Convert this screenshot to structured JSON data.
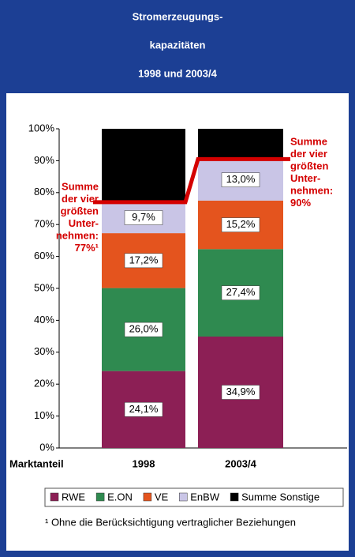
{
  "chart_data": {
    "type": "stacked_bar",
    "title_lines": [
      "Stromerzeugungs-",
      "kapazitäten",
      "1998 und 2003/4"
    ],
    "x_label": "Marktanteil",
    "categories": [
      "1998",
      "2003/4"
    ],
    "series": [
      {
        "name": "RWE",
        "color": "#8c1f55",
        "values": [
          24.1,
          34.9
        ],
        "value_labels": [
          "24,1%",
          "34,9%"
        ]
      },
      {
        "name": "E.ON",
        "color": "#2f8a50",
        "values": [
          26.0,
          27.4
        ],
        "value_labels": [
          "26,0%",
          "27,4%"
        ]
      },
      {
        "name": "VE",
        "color": "#e4541e",
        "values": [
          17.2,
          15.2
        ],
        "value_labels": [
          "17,2%",
          "15,2%"
        ]
      },
      {
        "name": "EnBW",
        "color": "#c9c5e6",
        "values": [
          9.7,
          13.0
        ],
        "value_labels": [
          "9,7%",
          "13,0%"
        ]
      },
      {
        "name": "Summe Sonstige",
        "color": "#000000",
        "values": [
          23.0,
          9.5
        ]
      }
    ],
    "ylim": [
      0,
      100
    ],
    "yticks": [
      {
        "value": 0,
        "label": "0%"
      },
      {
        "value": 10,
        "label": "10%"
      },
      {
        "value": 20,
        "label": "20%"
      },
      {
        "value": 30,
        "label": "30%"
      },
      {
        "value": 40,
        "label": "40%"
      },
      {
        "value": 50,
        "label": "50%"
      },
      {
        "value": 60,
        "label": "60%"
      },
      {
        "value": 70,
        "label": "70%"
      },
      {
        "value": 80,
        "label": "80%"
      },
      {
        "value": 90,
        "label": "90%"
      },
      {
        "value": 100,
        "label": "100%"
      }
    ],
    "sum_line_color": "#d40000",
    "annotations": [
      {
        "lines": [
          "Summe",
          "der vier",
          "größten",
          "Unter-",
          "nehmen:",
          "77%¹"
        ]
      },
      {
        "lines": [
          "Summe",
          "der vier",
          "größten",
          "Unter-",
          "nehmen:",
          "90%"
        ]
      }
    ],
    "footnote": "¹ Ohne die Berücksichtigung vertraglicher Beziehungen"
  }
}
